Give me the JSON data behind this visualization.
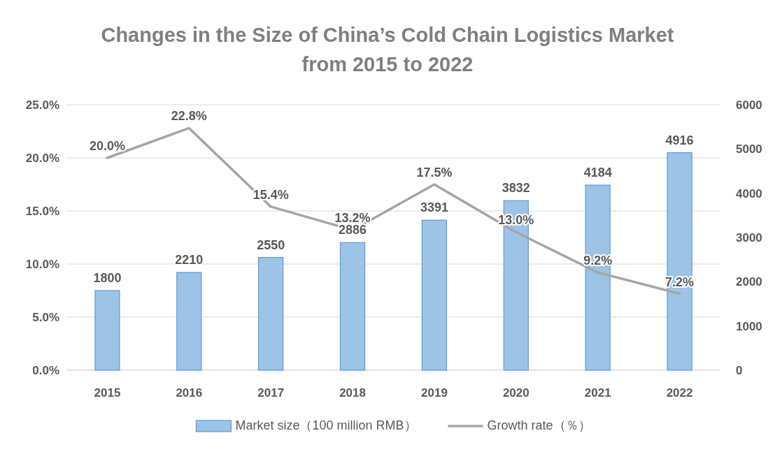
{
  "chart_data": {
    "type": "bar",
    "title": "Changes in the Size of China’s Cold Chain Logistics Market from 2015 to 2022",
    "categories": [
      "2015",
      "2016",
      "2017",
      "2018",
      "2019",
      "2020",
      "2021",
      "2022"
    ],
    "series": [
      {
        "name": "Market size（100 million RMB）",
        "axis": "y2",
        "color": "#9dc3e6",
        "values": [
          1800,
          2210,
          2550,
          2886,
          3391,
          3832,
          4184,
          4916
        ]
      },
      {
        "name": "Growth rate（％）",
        "type": "line",
        "axis": "y",
        "color": "#a5a5a5",
        "values": [
          20.0,
          22.8,
          15.4,
          13.2,
          17.5,
          13.0,
          9.2,
          7.2
        ],
        "value_labels": [
          "20.0%",
          "22.8%",
          "15.4%",
          "13.2%",
          "17.5%",
          "13.0%",
          "9.2%",
          "7.2%"
        ]
      }
    ],
    "ylim": [
      0,
      25
    ],
    "yticks": [
      {
        "value": 0,
        "label": "0.0%"
      },
      {
        "value": 5,
        "label": "5.0%"
      },
      {
        "value": 10,
        "label": "10.0%"
      },
      {
        "value": 15,
        "label": "15.0%"
      },
      {
        "value": 20,
        "label": "20.0%"
      },
      {
        "value": 25,
        "label": "25.0%"
      }
    ],
    "y2lim": [
      0,
      6000
    ],
    "y2ticks": [
      0,
      1000,
      2000,
      3000,
      4000,
      5000,
      6000
    ],
    "grid": "y",
    "legend": "bottom",
    "data_labels": true
  }
}
